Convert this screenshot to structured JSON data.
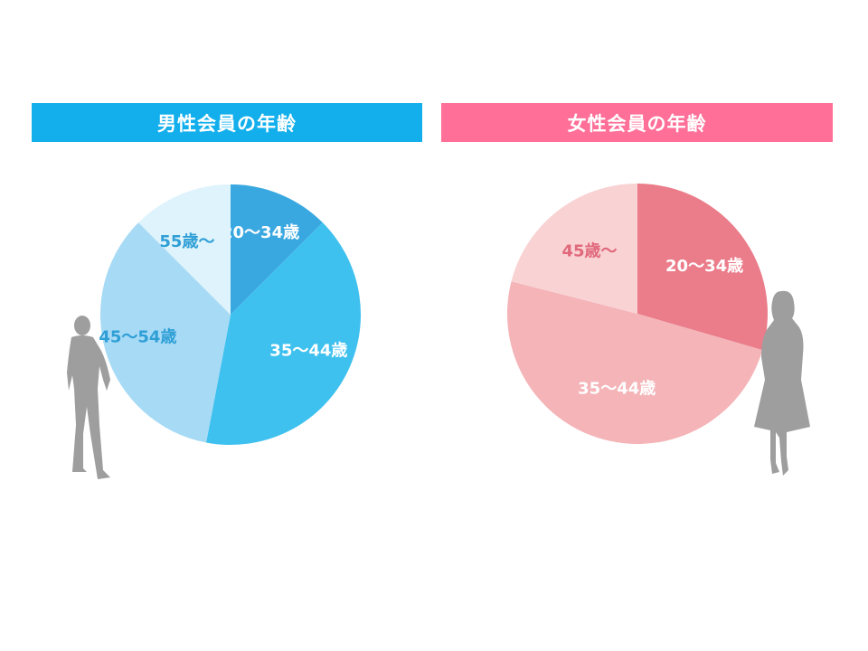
{
  "male": {
    "title": "男性会員の年齢",
    "header_color": "#12afec"
  },
  "female": {
    "title": "女性会員の年齢",
    "header_color": "#ff6f98"
  },
  "chart_data": [
    {
      "type": "pie",
      "title": "男性会員の年齢",
      "slices": [
        {
          "label": "20〜34歳",
          "value": 12.5,
          "color": "#3aa8e0",
          "label_color": "#ffffff"
        },
        {
          "label": "35〜44歳",
          "value": 40.5,
          "color": "#3fc1ef",
          "label_color": "#ffffff"
        },
        {
          "label": "45〜54歳",
          "value": 34.5,
          "color": "#a7daf5",
          "label_color": "#2f9fd6"
        },
        {
          "label": "55歳〜",
          "value": 12.5,
          "color": "#dff3fc",
          "label_color": "#2f9fd6"
        }
      ]
    },
    {
      "type": "pie",
      "title": "女性会員の年齢",
      "slices": [
        {
          "label": "20〜34歳",
          "value": 29.5,
          "color": "#eb7c8a",
          "label_color": "#ffffff"
        },
        {
          "label": "35〜44歳",
          "value": 49.5,
          "color": "#f4b4b8",
          "label_color": "#ffffff"
        },
        {
          "label": "45歳〜",
          "value": 21,
          "color": "#f9d2d3",
          "label_color": "#e0697c"
        }
      ]
    }
  ]
}
